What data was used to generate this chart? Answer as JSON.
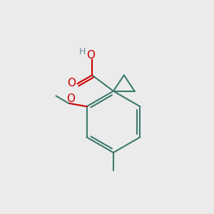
{
  "bg_color": "#ebebeb",
  "bond_color": "#3d7a6e",
  "o_color": "#cc0000",
  "h_color": "#6b8fa0",
  "line_width": 1.5,
  "figsize": [
    3.0,
    3.0
  ],
  "dpi": 100,
  "xlim": [
    0,
    10
  ],
  "ylim": [
    0,
    10
  ]
}
